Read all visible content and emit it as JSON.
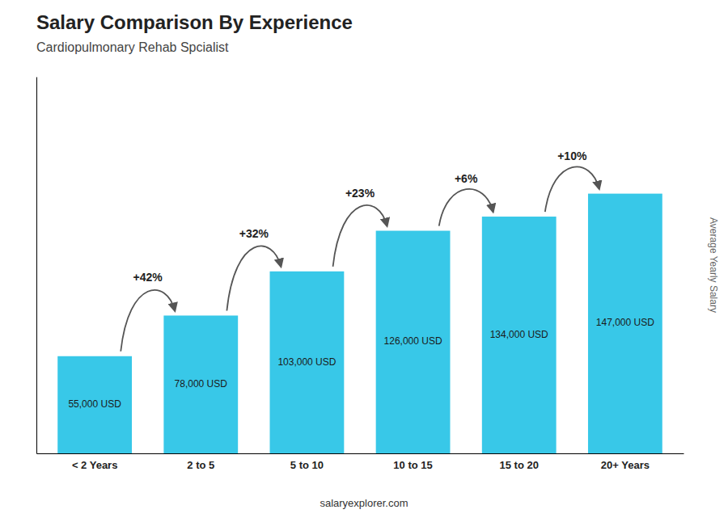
{
  "chart_data": {
    "type": "bar",
    "title": "Salary Comparison By Experience",
    "subtitle": "Cardiopulmonary Rehab Spcialist",
    "categories": [
      "< 2 Years",
      "2 to 5",
      "5 to 10",
      "10 to 15",
      "15 to 20",
      "20+ Years"
    ],
    "values": [
      55000,
      78000,
      103000,
      126000,
      134000,
      147000
    ],
    "value_labels": [
      "55,000 USD",
      "78,000 USD",
      "103,000 USD",
      "126,000 USD",
      "134,000 USD",
      "147,000 USD"
    ],
    "data_labels": true,
    "color": "#38C8E8",
    "annotations": [
      "+42%",
      "+32%",
      "+23%",
      "+6%",
      "+10%"
    ],
    "ylabel": "Average Yearly Salary",
    "footer": "salaryexplorer.com",
    "ylim": [
      0,
      213150
    ],
    "tick_labels": "x"
  }
}
